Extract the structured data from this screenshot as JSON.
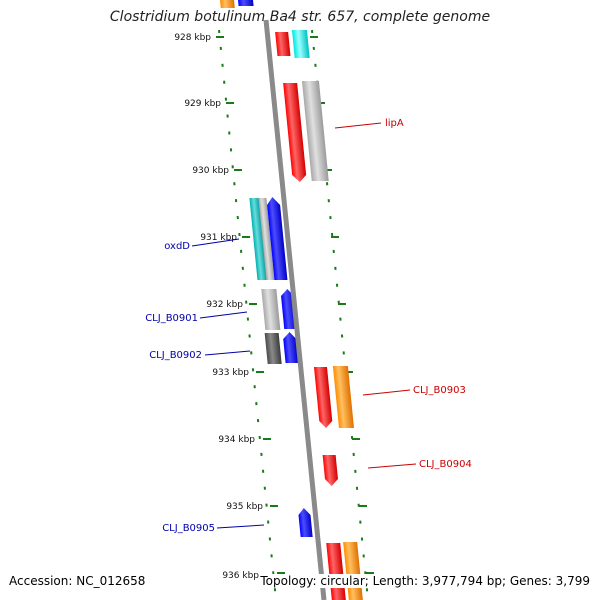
{
  "title": "Clostridium botulinum Ba4 str. 657, complete genome",
  "accession": "Accession: NC_012658",
  "stats": "Topology: circular; Length: 3,977,794 bp; Genes: 3,799",
  "colors": {
    "backbone": "#8a8a8a",
    "tick": "#1a7a1a",
    "forward_label": "#cc0000",
    "reverse_label": "#0000aa",
    "red": "#ff0000",
    "orange": "#ff8c00",
    "cyan": "#00e5e5",
    "blue": "#0000ff",
    "gray": "#b4b4b4",
    "darkgray": "#5a5a5a",
    "teal": "#00bbbb"
  },
  "kbp_ticks": [
    "928 kbp",
    "929 kbp",
    "930 kbp",
    "931 kbp",
    "932 kbp",
    "933 kbp",
    "934 kbp",
    "935 kbp",
    "936 kbp"
  ],
  "gene_labels": [
    {
      "text": "lipA",
      "strand": "forward"
    },
    {
      "text": "oxdD",
      "strand": "reverse"
    },
    {
      "text": "CLJ_B0901",
      "strand": "reverse"
    },
    {
      "text": "CLJ_B0902",
      "strand": "reverse"
    },
    {
      "text": "CLJ_B0903",
      "strand": "forward"
    },
    {
      "text": "CLJ_B0904",
      "strand": "forward"
    },
    {
      "text": "CLJ_B0905",
      "strand": "reverse"
    }
  ]
}
